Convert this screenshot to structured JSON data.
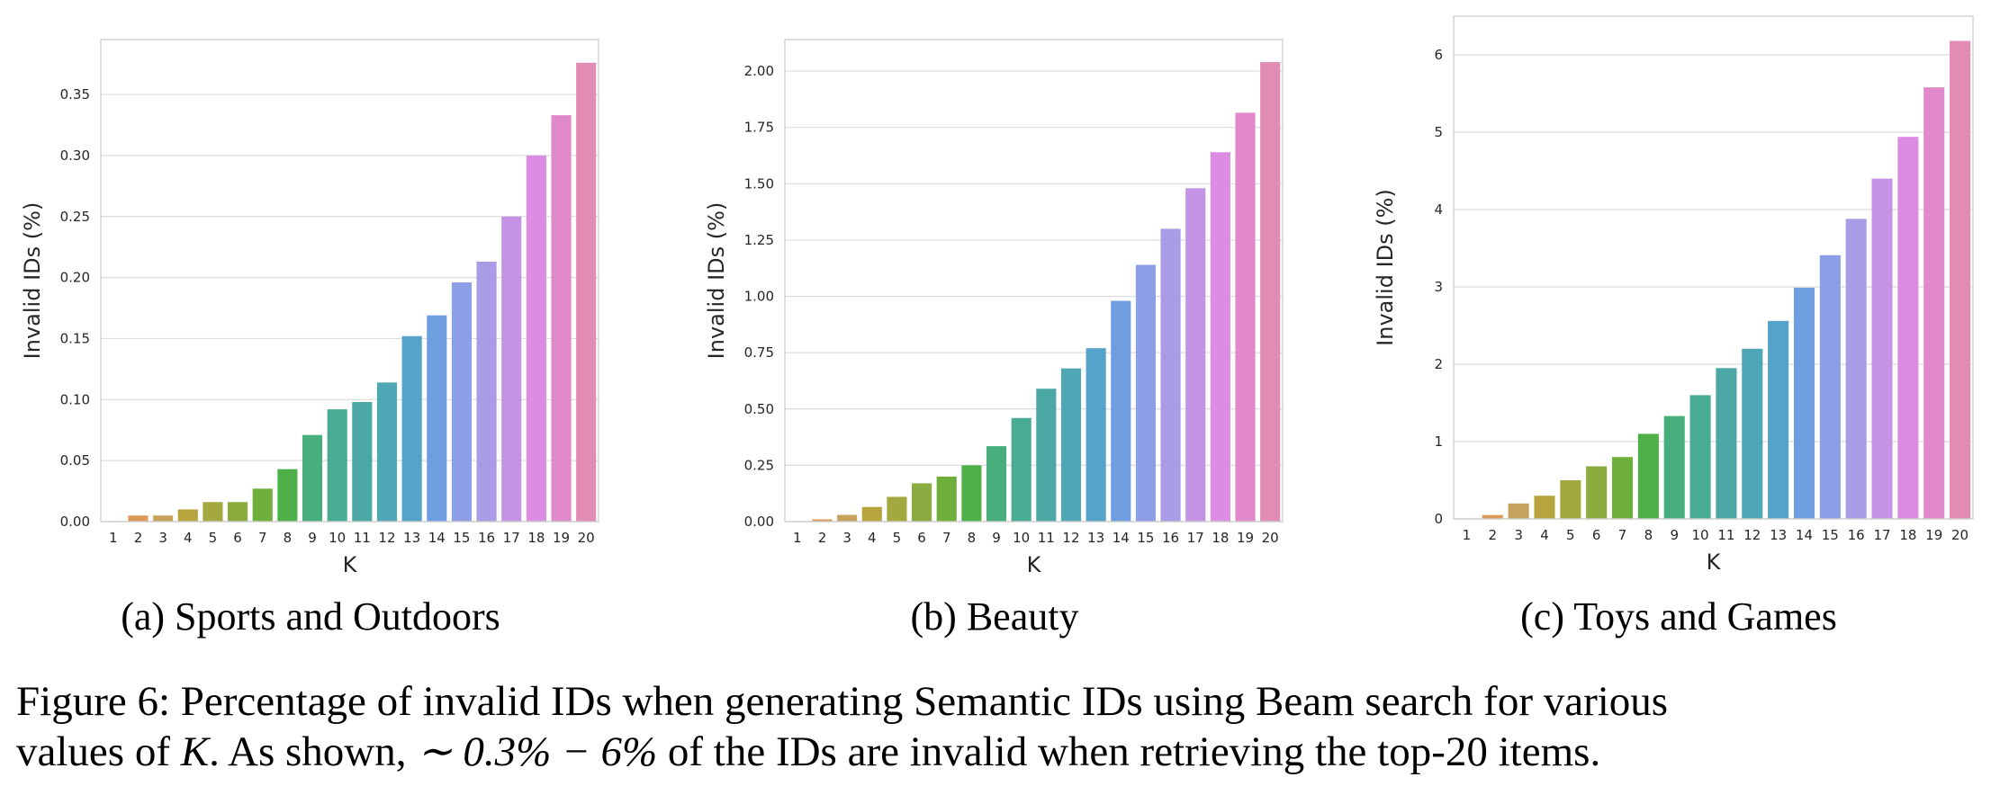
{
  "chart_data": [
    {
      "type": "bar",
      "subcaption": "(a) Sports and Outdoors",
      "xlabel": "K",
      "ylabel": "Invalid IDs (%)",
      "categories": [
        "1",
        "2",
        "3",
        "4",
        "5",
        "6",
        "7",
        "8",
        "9",
        "10",
        "11",
        "12",
        "13",
        "14",
        "15",
        "16",
        "17",
        "18",
        "19",
        "20"
      ],
      "values": [
        0.0,
        0.005,
        0.005,
        0.01,
        0.016,
        0.016,
        0.027,
        0.043,
        0.071,
        0.092,
        0.098,
        0.114,
        0.152,
        0.169,
        0.196,
        0.213,
        0.25,
        0.3,
        0.333,
        0.376
      ],
      "yticks": [
        "0.00",
        "0.05",
        "0.10",
        "0.15",
        "0.20",
        "0.25",
        "0.30",
        "0.35"
      ],
      "ylim": [
        0,
        0.395
      ],
      "grid": true,
      "legend": "none"
    },
    {
      "type": "bar",
      "subcaption": "(b) Beauty",
      "xlabel": "K",
      "ylabel": "Invalid IDs (%)",
      "categories": [
        "1",
        "2",
        "3",
        "4",
        "5",
        "6",
        "7",
        "8",
        "9",
        "10",
        "11",
        "12",
        "13",
        "14",
        "15",
        "16",
        "17",
        "18",
        "19",
        "20"
      ],
      "values": [
        0.0,
        0.01,
        0.03,
        0.065,
        0.11,
        0.17,
        0.2,
        0.25,
        0.335,
        0.46,
        0.59,
        0.68,
        0.77,
        0.98,
        1.14,
        1.3,
        1.48,
        1.64,
        1.815,
        2.04
      ],
      "yticks": [
        "0.00",
        "0.25",
        "0.50",
        "0.75",
        "1.00",
        "1.25",
        "1.50",
        "1.75",
        "2.00"
      ],
      "ylim": [
        0,
        2.14
      ],
      "grid": true,
      "legend": "none"
    },
    {
      "type": "bar",
      "subcaption": "(c) Toys and Games",
      "xlabel": "K",
      "ylabel": "Invalid IDs (%)",
      "categories": [
        "1",
        "2",
        "3",
        "4",
        "5",
        "6",
        "7",
        "8",
        "9",
        "10",
        "11",
        "12",
        "13",
        "14",
        "15",
        "16",
        "17",
        "18",
        "19",
        "20"
      ],
      "values": [
        0.0,
        0.05,
        0.2,
        0.3,
        0.5,
        0.68,
        0.8,
        1.1,
        1.33,
        1.6,
        1.95,
        2.2,
        2.56,
        2.99,
        3.41,
        3.88,
        4.4,
        4.94,
        5.58,
        6.18
      ],
      "yticks": [
        "0",
        "1",
        "2",
        "3",
        "4",
        "5",
        "6"
      ],
      "ylim": [
        0,
        6.5
      ],
      "grid": true,
      "legend": "none"
    }
  ],
  "colors": [
    "#e1938c",
    "#dd9a57",
    "#c6a35c",
    "#b7a43f",
    "#a3a93f",
    "#8aab3e",
    "#6daf3a",
    "#4fb04a",
    "#47ae7c",
    "#4aab93",
    "#4ca8a4",
    "#4fa6b4",
    "#55a2cb",
    "#6f9ee0",
    "#8c9ee6",
    "#a99be6",
    "#c593e5",
    "#dc8ce2",
    "#e088c9",
    "#e38cb3"
  ],
  "caption": {
    "line1": "Figure 6: Percentage of invalid IDs when generating Semantic IDs using Beam search for various",
    "line2_pre": "values of ",
    "line2_var": "K",
    "line2_mid": ". As shown, ",
    "line2_math": "∼ 0.3% − 6%",
    "line2_post": " of the IDs are invalid when retrieving the top-20 items."
  }
}
